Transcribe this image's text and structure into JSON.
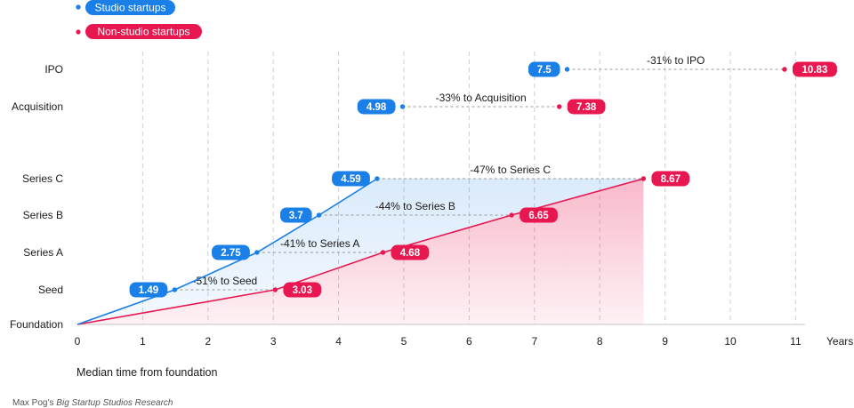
{
  "legend": {
    "studio": "Studio startups",
    "non_studio": "Non-studio startups"
  },
  "footer": {
    "prefix": "Max Pog’s ",
    "title": "Big Startup Studios Research"
  },
  "chart_data": {
    "type": "line",
    "xlabel": "Median time from foundation",
    "x_unit": "Years",
    "xlim": [
      0,
      11
    ],
    "x_ticks": [
      "0",
      "1",
      "2",
      "3",
      "4",
      "5",
      "6",
      "7",
      "8",
      "9",
      "10",
      "11"
    ],
    "stages": [
      "Foundation",
      "Seed",
      "Series A",
      "Series B",
      "Series C",
      "Acquisition",
      "IPO"
    ],
    "series": [
      {
        "name": "Studio startups",
        "color": "#1a7fe6",
        "values": [
          0,
          1.49,
          2.75,
          3.7,
          4.59,
          4.98,
          7.5
        ],
        "labels": [
          "",
          "1.49",
          "2.75",
          "3.7",
          "4.59",
          "4.98",
          "7.5"
        ]
      },
      {
        "name": "Non-studio startups",
        "color": "#e8174f",
        "values": [
          0,
          3.03,
          4.68,
          6.65,
          8.67,
          7.38,
          10.83
        ],
        "labels": [
          "",
          "3.03",
          "4.68",
          "6.65",
          "8.67",
          "7.38",
          "10.83"
        ]
      }
    ],
    "annotations": [
      "",
      "-51% to Seed",
      "-41% to Series A",
      "-44% to Series B",
      "-47% to Series C",
      "-33% to Acquisition",
      "-31% to IPO"
    ]
  }
}
